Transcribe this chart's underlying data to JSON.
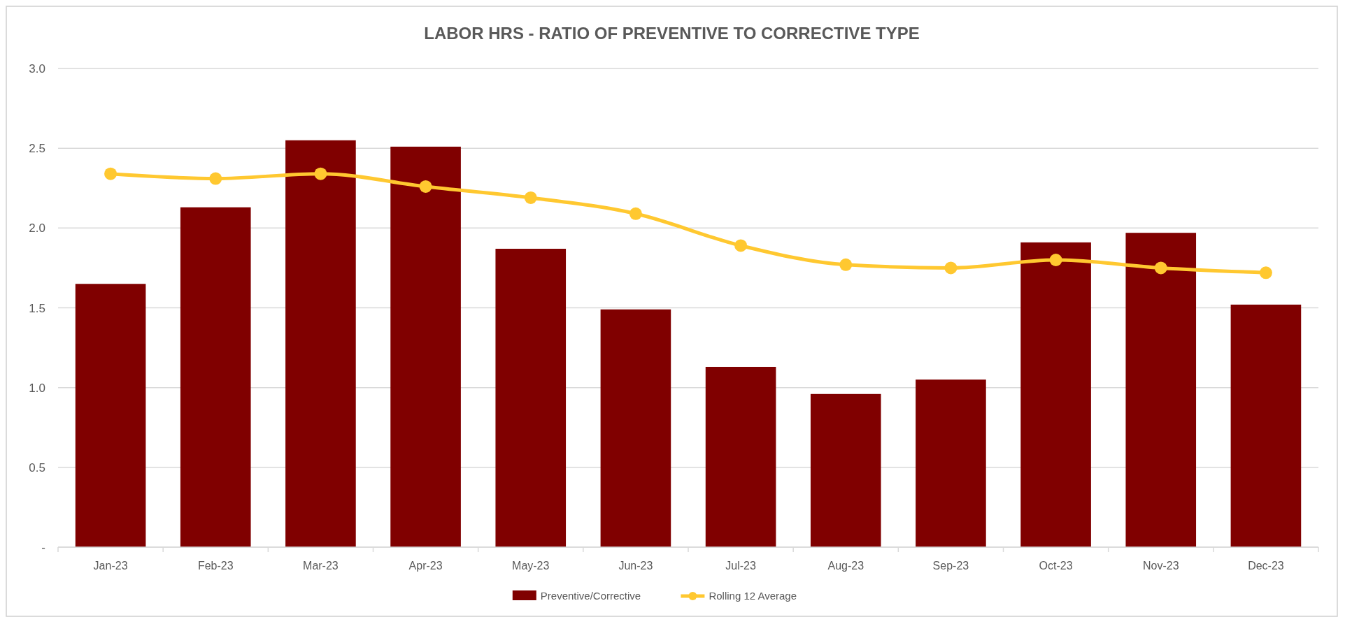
{
  "chart_data": {
    "type": "bar",
    "title": "LABOR HRS - RATIO OF PREVENTIVE TO CORRECTIVE TYPE",
    "categories": [
      "Jan-23",
      "Feb-23",
      "Mar-23",
      "Apr-23",
      "May-23",
      "Jun-23",
      "Jul-23",
      "Aug-23",
      "Sep-23",
      "Oct-23",
      "Nov-23",
      "Dec-23"
    ],
    "series": [
      {
        "name": "Preventive/Corrective",
        "color": "#800000",
        "values": [
          1.65,
          2.13,
          2.55,
          2.51,
          1.87,
          1.49,
          1.13,
          0.96,
          1.05,
          1.91,
          1.97,
          1.52
        ]
      },
      {
        "name": "Rolling 12 Average",
        "type": "line",
        "color": "#ffc830",
        "marker": "circle",
        "values": [
          2.34,
          2.31,
          2.34,
          2.26,
          2.19,
          2.09,
          1.89,
          1.77,
          1.75,
          1.8,
          1.75,
          1.72
        ]
      }
    ],
    "ylim": [
      0,
      3
    ],
    "yticks": [
      {
        "value": 0,
        "label": "-"
      },
      {
        "value": 0.5,
        "label": "0.5"
      },
      {
        "value": 1,
        "label": "1.0"
      },
      {
        "value": 1.5,
        "label": "1.5"
      },
      {
        "value": 2,
        "label": "2.0"
      },
      {
        "value": 2.5,
        "label": "2.5"
      },
      {
        "value": 3,
        "label": "3.0"
      }
    ],
    "grid": "y",
    "legend": "bottom"
  }
}
